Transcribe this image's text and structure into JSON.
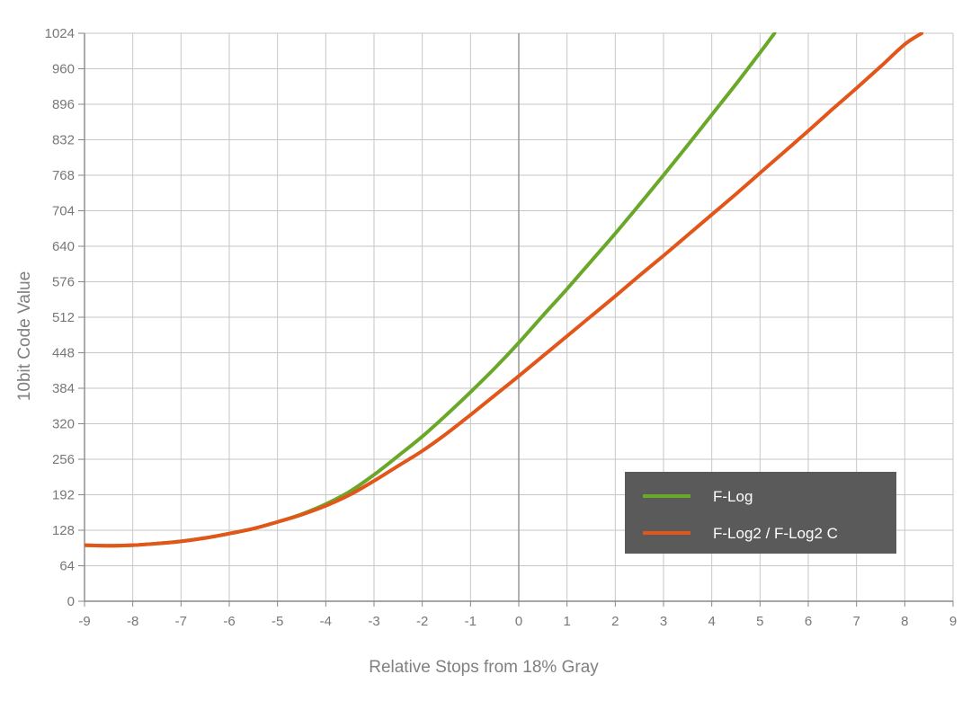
{
  "chart_data": {
    "type": "line",
    "title": "",
    "xlabel": "Relative Stops from 18% Gray",
    "ylabel": "10bit Code Value",
    "xlim": [
      -9,
      9
    ],
    "ylim": [
      0,
      1024
    ],
    "xticks": [
      "-9",
      "-8",
      "-7",
      "-6",
      "-5",
      "-4",
      "-3",
      "-2",
      "-1",
      "0",
      "1",
      "2",
      "3",
      "4",
      "5",
      "6",
      "7",
      "8",
      "9"
    ],
    "yticks": [
      "0",
      "64",
      "128",
      "192",
      "256",
      "320",
      "384",
      "448",
      "512",
      "576",
      "640",
      "704",
      "768",
      "832",
      "896",
      "960",
      "1024"
    ],
    "grid": true,
    "legend_position": "bottom-right",
    "series": [
      {
        "name": "F-Log",
        "color": "#6aa829",
        "x": [
          -9,
          -8.5,
          -8,
          -7.5,
          -7,
          -6.5,
          -6,
          -5.5,
          -5,
          -4.5,
          -4,
          -3.5,
          -3,
          -2.5,
          -2,
          -1.5,
          -1,
          -0.5,
          0,
          0.5,
          1,
          1.5,
          2,
          2.5,
          3,
          3.5,
          4,
          4.5,
          5,
          5.3
        ],
        "values": [
          101,
          100,
          101,
          104,
          108,
          114,
          122,
          131,
          143,
          157,
          175,
          198,
          228,
          262,
          297,
          336,
          377,
          420,
          466,
          515,
          563,
          613,
          663,
          715,
          768,
          822,
          877,
          932,
          989,
          1024
        ]
      },
      {
        "name": "F-Log2 / F-Log2 C",
        "color": "#e2561a",
        "x": [
          -9,
          -8.5,
          -8,
          -7.5,
          -7,
          -6.5,
          -6,
          -5.5,
          -5,
          -4.5,
          -4,
          -3.5,
          -3,
          -2.5,
          -2,
          -1.5,
          -1,
          -0.5,
          0,
          0.5,
          1,
          1.5,
          2,
          2.5,
          3,
          3.5,
          4,
          4.5,
          5,
          5.5,
          6,
          6.5,
          7,
          7.5,
          8,
          8.35
        ],
        "values": [
          101,
          100,
          101,
          104,
          108,
          114,
          122,
          131,
          143,
          156,
          172,
          192,
          217,
          244,
          271,
          302,
          336,
          371,
          406,
          442,
          478,
          514,
          550,
          587,
          623,
          660,
          697,
          734,
          772,
          810,
          848,
          887,
          925,
          964,
          1004,
          1024
        ]
      }
    ]
  }
}
